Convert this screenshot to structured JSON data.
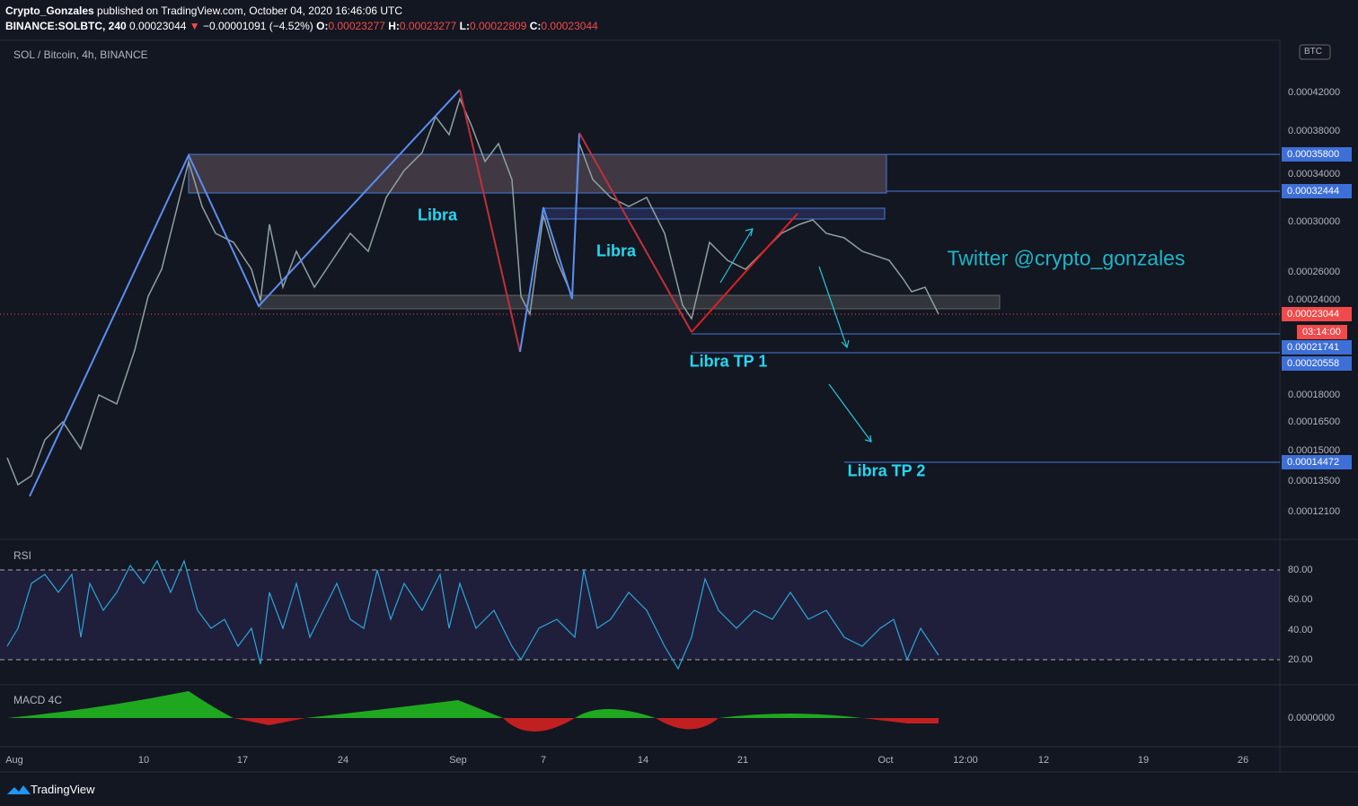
{
  "header": {
    "author": "Crypto_Gonzales",
    "published": "published on TradingView.com, October 04, 2020 16:46:06 UTC",
    "symbol": "BINANCE:SOLBTC, 240",
    "last": "0.00023044",
    "arrow": "▼",
    "change": "−0.00001091 (−4.52%)",
    "o_label": "O:",
    "o": "0.00023277",
    "h_label": "H:",
    "h": "0.00023277",
    "l_label": "L:",
    "l": "0.00022809",
    "c_label": "C:",
    "c": "0.00023044"
  },
  "legend": "SOL / Bitcoin, 4h, BINANCE",
  "currency": "BTC",
  "price_axis": [
    "0.00042000",
    "0.00038000",
    "0.00034000",
    "0.00030000",
    "0.00026000",
    "0.00024000",
    "0.00018000",
    "0.00016500",
    "0.00015000",
    "0.00013500",
    "0.00012100"
  ],
  "price_tags": {
    "level1": "0.00035800",
    "level2": "0.00032444",
    "last": "0.00023044",
    "countdown": "03:14:00",
    "tp1a": "0.00021741",
    "tp1b": "0.00020558",
    "tp2": "0.00014472"
  },
  "annotations": {
    "libra1": "Libra",
    "libra2": "Libra",
    "tp1": "Libra TP 1",
    "tp2": "Libra TP 2",
    "twitter": "Twitter  @crypto_gonzales"
  },
  "rsi": {
    "title": "RSI",
    "levels": [
      "80.00",
      "60.00",
      "40.00",
      "20.00"
    ]
  },
  "macd": {
    "title": "MACD 4C",
    "zero": "0.0000000"
  },
  "time_axis": [
    "Aug",
    "10",
    "17",
    "24",
    "Sep",
    "7",
    "14",
    "21",
    "Oct",
    "12:00",
    "12",
    "19",
    "26"
  ],
  "footer": "TradingView"
}
